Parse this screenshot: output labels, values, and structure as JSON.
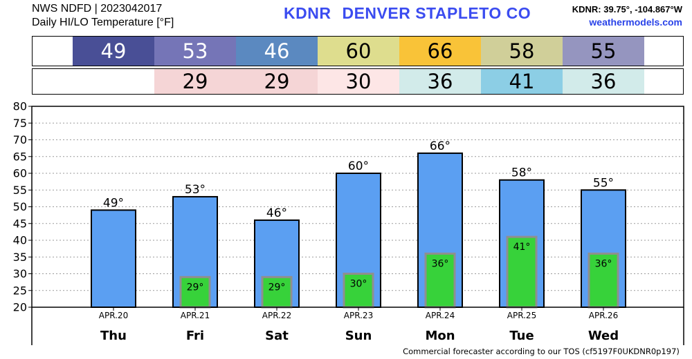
{
  "header": {
    "line1": "NWS NDFD | 2023042017",
    "line2": "Daily HI/LO Temperature [°F]",
    "station": "KDNR",
    "station_name": "DENVER STAPLETO CO",
    "coords": "KDNR: 39.75°, -104.867°W",
    "site": "weathermodels.com"
  },
  "footer": "Commercial forecaster according to our TOS (cf5197F0UKDNR0p197)",
  "hi_strip": [
    {
      "label": "49",
      "bg": "#494f96",
      "fg": "#ffffff"
    },
    {
      "label": "53",
      "bg": "#7575b7",
      "fg": "#ffffff"
    },
    {
      "label": "46",
      "bg": "#5b89c0",
      "fg": "#ffffff"
    },
    {
      "label": "60",
      "bg": "#dedd8e",
      "fg": "#000000"
    },
    {
      "label": "66",
      "bg": "#f9c338",
      "fg": "#000000"
    },
    {
      "label": "58",
      "bg": "#d0cf99",
      "fg": "#000000"
    },
    {
      "label": "55",
      "bg": "#9595bf",
      "fg": "#000000"
    }
  ],
  "lo_strip": [
    {
      "label": "",
      "bg": "#ffffff",
      "fg": "#000000"
    },
    {
      "label": "29",
      "bg": "#f5d5d6",
      "fg": "#000000"
    },
    {
      "label": "29",
      "bg": "#f5d5d6",
      "fg": "#000000"
    },
    {
      "label": "30",
      "bg": "#fde6e6",
      "fg": "#000000"
    },
    {
      "label": "36",
      "bg": "#d2ebea",
      "fg": "#000000"
    },
    {
      "label": "41",
      "bg": "#8ccee5",
      "fg": "#000000"
    },
    {
      "label": "36",
      "bg": "#d2ebea",
      "fg": "#000000"
    }
  ],
  "chart_data": {
    "type": "bar",
    "ylim": [
      20,
      80
    ],
    "yticks": [
      20,
      25,
      30,
      35,
      40,
      45,
      50,
      55,
      60,
      65,
      70,
      75,
      80
    ],
    "grid": true,
    "categories": [
      "APR.20",
      "APR.21",
      "APR.22",
      "APR.23",
      "APR.24",
      "APR.25",
      "APR.26"
    ],
    "days": [
      "Thu",
      "Fri",
      "Sat",
      "Sun",
      "Mon",
      "Tue",
      "Wed"
    ],
    "series": [
      {
        "values": [
          49,
          53,
          46,
          60,
          66,
          58,
          55
        ],
        "labels": [
          "49°",
          "53°",
          "46°",
          "60°",
          "66°",
          "58°",
          "55°"
        ],
        "color": "#5b9ff2"
      },
      {
        "values": [
          null,
          29,
          29,
          30,
          36,
          41,
          36
        ],
        "labels": [
          "",
          "29°",
          "29°",
          "30°",
          "36°",
          "41°",
          "36°"
        ],
        "color": "#37d23a"
      }
    ]
  }
}
